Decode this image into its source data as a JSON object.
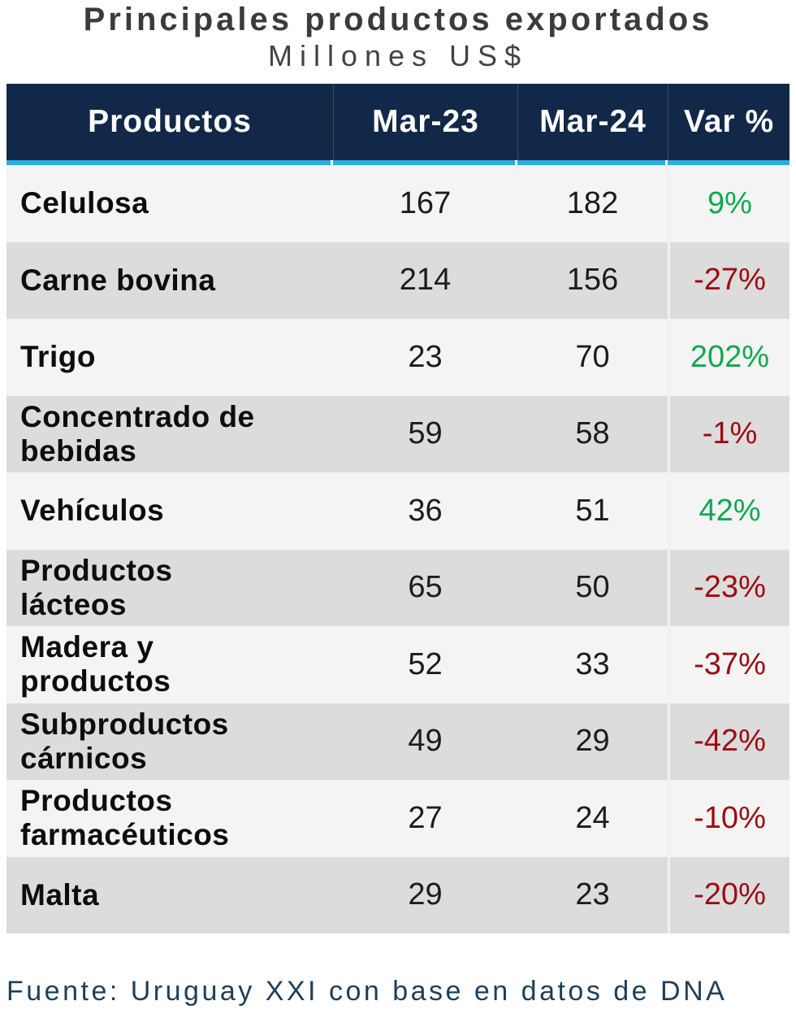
{
  "header": {
    "title": "Principales productos exportados",
    "subtitle": "Millones US$"
  },
  "chart_data": {
    "type": "table",
    "title": "Principales productos exportados",
    "subtitle": "Millones US$",
    "unit": "Millones US$",
    "columns": [
      "Productos",
      "Mar-23",
      "Mar-24",
      "Var %"
    ],
    "rows": [
      {
        "product": "Celulosa",
        "display_name": "Celulosa",
        "mar23": "167",
        "mar24": "182",
        "var_pct": "9%",
        "trend": "positive"
      },
      {
        "product": "Carne bovina",
        "display_name": "Carne bovina",
        "mar23": "214",
        "mar24": "156",
        "var_pct": "-27%",
        "trend": "negative"
      },
      {
        "product": "Trigo",
        "display_name": "Trigo",
        "mar23": "23",
        "mar24": "70",
        "var_pct": "202%",
        "trend": "positive"
      },
      {
        "product": "Concentrado de bebidas",
        "display_name": "Concentrado de\nbebidas",
        "mar23": "59",
        "mar24": "58",
        "var_pct": "-1%",
        "trend": "negative"
      },
      {
        "product": "Vehículos",
        "display_name": "Vehículos",
        "mar23": "36",
        "mar24": "51",
        "var_pct": "42%",
        "trend": "positive"
      },
      {
        "product": "Productos lácteos",
        "display_name": "Productos\nlácteos",
        "mar23": "65",
        "mar24": "50",
        "var_pct": "-23%",
        "trend": "negative"
      },
      {
        "product": "Madera y productos",
        "display_name": "Madera y\nproductos",
        "mar23": "52",
        "mar24": "33",
        "var_pct": "-37%",
        "trend": "negative"
      },
      {
        "product": "Subproductos cárnicos",
        "display_name": "Subproductos\ncárnicos",
        "mar23": "49",
        "mar24": "29",
        "var_pct": "-42%",
        "trend": "negative"
      },
      {
        "product": "Productos farmacéuticos",
        "display_name": "Productos\nfarmacéuticos",
        "mar23": "27",
        "mar24": "24",
        "var_pct": "-10%",
        "trend": "negative"
      },
      {
        "product": "Malta",
        "display_name": "Malta",
        "mar23": "29",
        "mar24": "23",
        "var_pct": "-20%",
        "trend": "negative"
      }
    ],
    "source": "Fuente: Uruguay XXI con base en datos de DNA"
  },
  "colors": {
    "header_bg": "#112849",
    "accent_cyan": "#29abe2",
    "positive": "#11a84f",
    "negative": "#9d0b10",
    "row_light": "#f4f4f4",
    "row_gray": "#dcdcdc",
    "title_text": "#3b3b3b",
    "subtitle_text": "#434343",
    "source_text": "#1d3f59",
    "header_text": "#ffffff",
    "body_text": "#1c1c1c"
  }
}
